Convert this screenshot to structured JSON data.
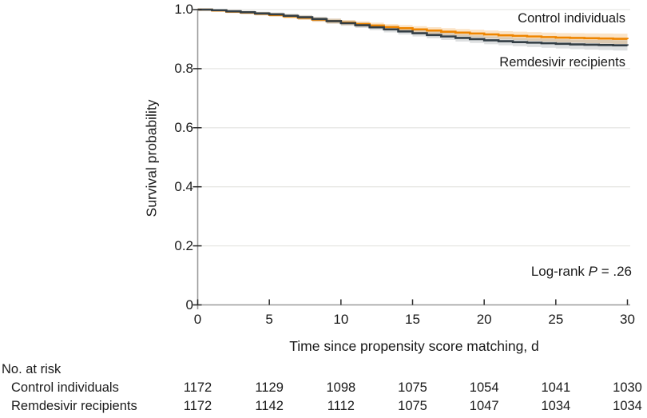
{
  "chart_data": {
    "type": "line",
    "subtype": "kaplan-meier-step",
    "title": "",
    "xlabel": "Time since propensity score matching, d",
    "ylabel": "Survival probability",
    "xlim": [
      0,
      30
    ],
    "ylim": [
      0,
      1.0
    ],
    "xticks": [
      0,
      5,
      10,
      15,
      20,
      25,
      30
    ],
    "xtick_labels": [
      "0",
      "5",
      "10",
      "15",
      "20",
      "25",
      "30"
    ],
    "yticks": [
      0,
      0.2,
      0.4,
      0.6,
      0.8,
      1.0
    ],
    "ytick_labels": [
      "0",
      "0.2",
      "0.4",
      "0.6",
      "0.8",
      "1.0"
    ],
    "grid": "horizontal-only",
    "legend_position": "labels-at-line-end",
    "annotation_prefix": "Log-rank ",
    "annotation_p": "P",
    "annotation_value": " = .26",
    "colors": {
      "grid": "#e7e7e4",
      "axis": "#9b9b9b",
      "tick": "#2a2a2a",
      "text": "#1a1a1a"
    },
    "series": [
      {
        "id": "control",
        "name": "Control individuals",
        "color": "#ee8500",
        "band_color": "rgba(238,133,0,0.22)",
        "ci": {
          "start": 0.004,
          "end": 0.018
        },
        "x": [
          0,
          1,
          2,
          3,
          4,
          5,
          6,
          7,
          8,
          9,
          10,
          11,
          12,
          13,
          14,
          15,
          16,
          17,
          18,
          19,
          20,
          21,
          22,
          23,
          24,
          25,
          26,
          27,
          28,
          29,
          30
        ],
        "values": [
          1.0,
          0.997,
          0.993,
          0.99,
          0.986,
          0.982,
          0.977,
          0.972,
          0.966,
          0.961,
          0.956,
          0.951,
          0.946,
          0.941,
          0.937,
          0.933,
          0.929,
          0.925,
          0.922,
          0.919,
          0.916,
          0.913,
          0.911,
          0.909,
          0.907,
          0.905,
          0.904,
          0.903,
          0.902,
          0.901,
          0.9
        ]
      },
      {
        "id": "remdesivir",
        "name": "Remdesivir recipients",
        "color": "#333e45",
        "band_color": "rgba(51,62,69,0.16)",
        "ci": {
          "start": 0.004,
          "end": 0.018
        },
        "x": [
          0,
          1,
          2,
          3,
          4,
          5,
          6,
          7,
          8,
          9,
          10,
          11,
          12,
          13,
          14,
          15,
          16,
          17,
          18,
          19,
          20,
          21,
          22,
          23,
          24,
          25,
          26,
          27,
          28,
          29,
          30
        ],
        "values": [
          1.0,
          0.998,
          0.994,
          0.991,
          0.987,
          0.984,
          0.979,
          0.974,
          0.968,
          0.961,
          0.954,
          0.947,
          0.94,
          0.933,
          0.926,
          0.92,
          0.914,
          0.909,
          0.904,
          0.9,
          0.896,
          0.893,
          0.89,
          0.888,
          0.886,
          0.884,
          0.882,
          0.881,
          0.88,
          0.879,
          0.878
        ]
      }
    ]
  },
  "risk_table": {
    "title": "No. at risk",
    "time_points": [
      0,
      5,
      10,
      15,
      20,
      25,
      30
    ],
    "rows": [
      {
        "label": "Control individuals",
        "values": [
          "1172",
          "1129",
          "1098",
          "1075",
          "1054",
          "1041",
          "1030"
        ]
      },
      {
        "label": "Remdesivir recipients",
        "values": [
          "1172",
          "1142",
          "1112",
          "1075",
          "1047",
          "1034",
          "1034"
        ]
      }
    ]
  }
}
